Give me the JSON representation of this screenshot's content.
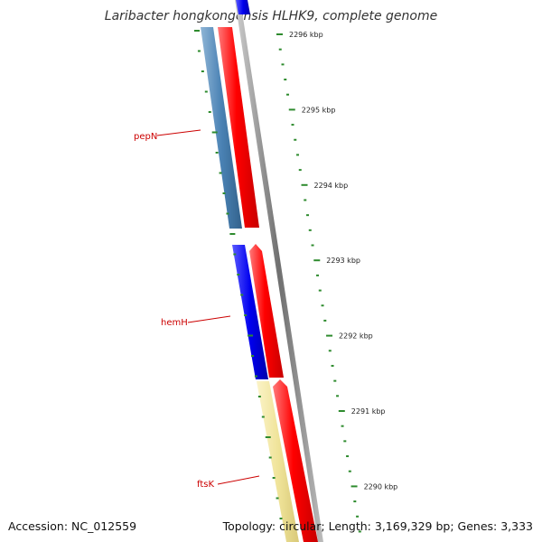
{
  "title": "Laribacter hongkongensis HLHK9, complete genome",
  "accession": "Accession: NC_012559",
  "info": "Topology: circular; Length: 3,169,329 bp; Genes: 3,333",
  "colors": {
    "forward": "#ff0000",
    "reverse_dark": "#0000ee",
    "reverse_light": "#4a82b4",
    "reverse_yellow": "#f0e49a",
    "ticks": "#2e8b2e",
    "labels": "#cc0000"
  },
  "scale": {
    "unit": "kbp",
    "major_ticks": [
      "2296 kbp",
      "2295 kbp",
      "2294 kbp",
      "2293 kbp",
      "2292 kbp",
      "2291 kbp",
      "2290 kbp"
    ]
  },
  "genes": [
    {
      "name": "pepN",
      "strand": "reverse",
      "color_key": "reverse_light"
    },
    {
      "name": "hemH",
      "strand": "reverse",
      "color_key": "reverse_dark"
    },
    {
      "name": "ftsK",
      "strand": "reverse",
      "color_key": "reverse_yellow"
    }
  ]
}
